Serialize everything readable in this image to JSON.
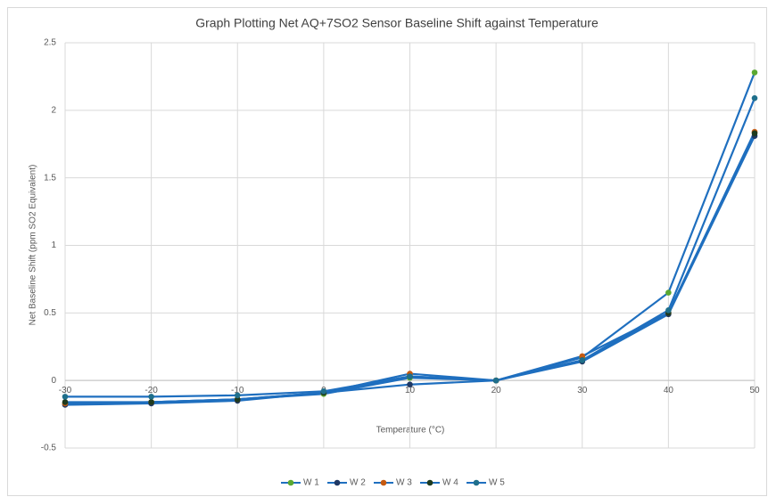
{
  "chart_data": {
    "type": "line",
    "title": "Graph Plotting Net AQ+7SO2 Sensor Baseline Shift against Temperature",
    "x_label": "Temperature (°C)",
    "y_label": "Net Baseline Shift (ppm SO2 Equivalent)",
    "x": [
      -30,
      -20,
      -10,
      0,
      10,
      20,
      30,
      40,
      50
    ],
    "series": [
      {
        "name": "W 1",
        "color": "#5aa832",
        "values": [
          -0.17,
          -0.16,
          -0.14,
          -0.1,
          0.02,
          0,
          0.17,
          0.65,
          2.28
        ]
      },
      {
        "name": "W 2",
        "color": "#1f3864",
        "values": [
          -0.18,
          -0.17,
          -0.15,
          -0.09,
          -0.03,
          0,
          0.14,
          0.49,
          1.81
        ]
      },
      {
        "name": "W 3",
        "color": "#c55a11",
        "values": [
          -0.17,
          -0.16,
          -0.14,
          -0.09,
          0.05,
          0,
          0.18,
          0.5,
          1.84
        ]
      },
      {
        "name": "W 4",
        "color": "#1e3a1e",
        "values": [
          -0.16,
          -0.16,
          -0.14,
          -0.09,
          0.03,
          0,
          0.15,
          0.5,
          1.83
        ]
      },
      {
        "name": "W 5",
        "color": "#1f6f8b",
        "values": [
          -0.12,
          -0.12,
          -0.11,
          -0.08,
          0.03,
          0,
          0.15,
          0.52,
          2.09
        ]
      }
    ],
    "line_color": "#1f6fbf",
    "xlim": [
      -30,
      50
    ],
    "xticks": [
      -30,
      -20,
      -10,
      0,
      10,
      20,
      30,
      40,
      50
    ],
    "ylim": [
      -0.5,
      2.5
    ],
    "yticks": [
      -0.5,
      0,
      0.5,
      1,
      1.5,
      2,
      2.5
    ],
    "grid": true,
    "legend": "bottom"
  }
}
